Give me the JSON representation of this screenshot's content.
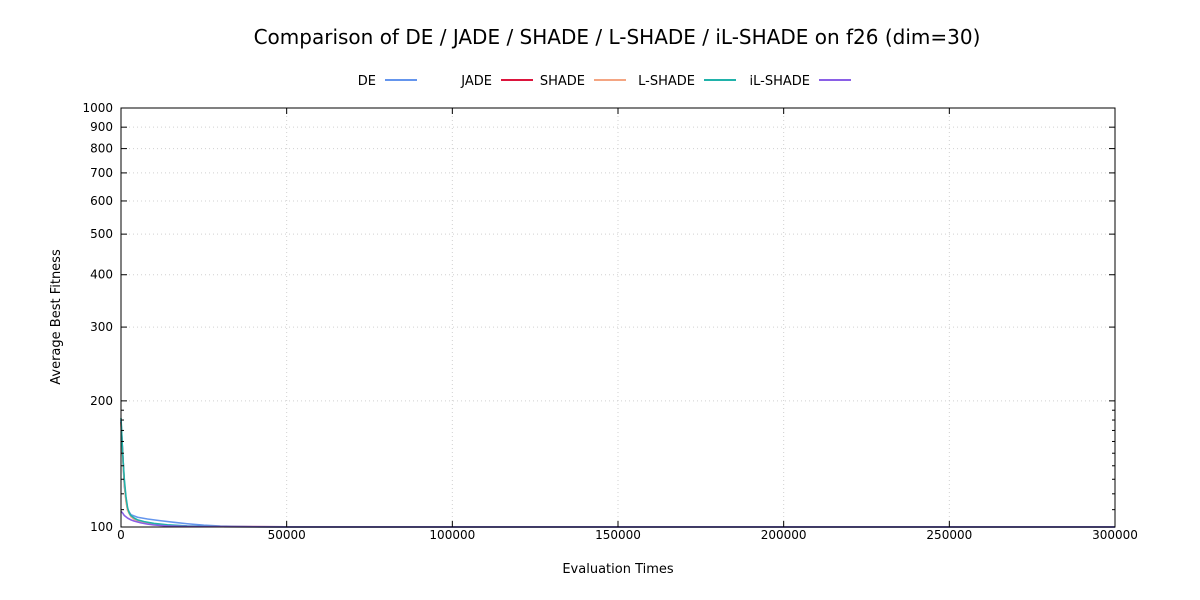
{
  "chart_data": {
    "type": "line",
    "title": "Comparison of DE / JADE / SHADE / L-SHADE / iL-SHADE on f26 (dim=30)",
    "xlabel": "Evaluation Times",
    "ylabel": "Average Best Fitness",
    "xlim": [
      0,
      300000
    ],
    "ylim": [
      100,
      1000
    ],
    "yscale": "log",
    "grid": true,
    "legend_position": "top-center",
    "x_ticks": [
      0,
      50000,
      100000,
      150000,
      200000,
      250000,
      300000
    ],
    "x_tick_labels": [
      "0",
      "50000",
      "100000",
      "150000",
      "200000",
      "250000",
      "300000"
    ],
    "y_ticks": [
      100,
      200,
      300,
      400,
      500,
      600,
      700,
      800,
      900,
      1000
    ],
    "y_tick_labels": [
      "100",
      "200",
      "300",
      "400",
      "500",
      "600",
      "700",
      "800",
      "900",
      "1000"
    ],
    "series": [
      {
        "name": "DE",
        "color": "#6495ed",
        "x": [
          0,
          500,
          1000,
          2000,
          3000,
          5000,
          8000,
          12000,
          16000,
          20000,
          25000,
          30000,
          35000,
          40000,
          50000,
          60000,
          80000,
          100000,
          150000,
          200000,
          250000,
          300000
        ],
        "y": [
          180,
          150,
          125,
          110,
          107,
          105.5,
          104.5,
          103.5,
          102.6,
          101.8,
          101,
          100.5,
          100.3,
          100.2,
          100.1,
          100.05,
          100.03,
          100.02,
          100.01,
          100.01,
          100.01,
          100.01
        ]
      },
      {
        "name": "JADE",
        "color": "#dc143c",
        "x": [
          0,
          500,
          1000,
          1500,
          2000,
          3000,
          4000,
          6000,
          8000,
          10000,
          14000,
          20000,
          30000,
          50000,
          100000,
          150000,
          200000,
          250000,
          300000
        ],
        "y": [
          178,
          150,
          128,
          116,
          110,
          106,
          104.5,
          103,
          102,
          101.5,
          100.8,
          100.4,
          100.2,
          100.1,
          100.02,
          100.01,
          100.01,
          100.01,
          100.01
        ]
      },
      {
        "name": "SHADE",
        "color": "#f4a582",
        "x": [
          0,
          500,
          1000,
          1500,
          2000,
          3000,
          4000,
          6000,
          8000,
          10000,
          14000,
          20000,
          30000,
          50000,
          100000,
          150000,
          200000,
          250000,
          300000
        ],
        "y": [
          176,
          148,
          127,
          115,
          109.5,
          105.8,
          104.3,
          102.8,
          101.9,
          101.4,
          100.7,
          100.35,
          100.15,
          100.05,
          100.02,
          100.01,
          100.01,
          100.01,
          100.01
        ]
      },
      {
        "name": "L-SHADE",
        "color": "#20b2aa",
        "x": [
          0,
          500,
          1000,
          1500,
          2000,
          2500,
          3000,
          4000,
          5000,
          7000,
          10000,
          14000,
          20000,
          30000,
          50000,
          100000,
          150000,
          200000,
          250000,
          300000
        ],
        "y": [
          182,
          150,
          130,
          118,
          111,
          108,
          106.5,
          105,
          104,
          103,
          102,
          101.2,
          100.6,
          100.2,
          100.05,
          100.02,
          100.01,
          100.01,
          100.01,
          100.01
        ]
      },
      {
        "name": "iL-SHADE",
        "color": "#8a5fe6",
        "x": [
          0,
          500,
          1000,
          2000,
          3000,
          4000,
          6000,
          8000,
          10000,
          14000,
          20000,
          30000,
          50000,
          100000,
          150000,
          200000,
          250000,
          300000
        ],
        "y": [
          109,
          108,
          106.5,
          105,
          104,
          103.3,
          102.3,
          101.6,
          101.1,
          100.6,
          100.3,
          100.15,
          100.05,
          100.02,
          100.01,
          100.01,
          100.01,
          100.01
        ]
      }
    ]
  }
}
